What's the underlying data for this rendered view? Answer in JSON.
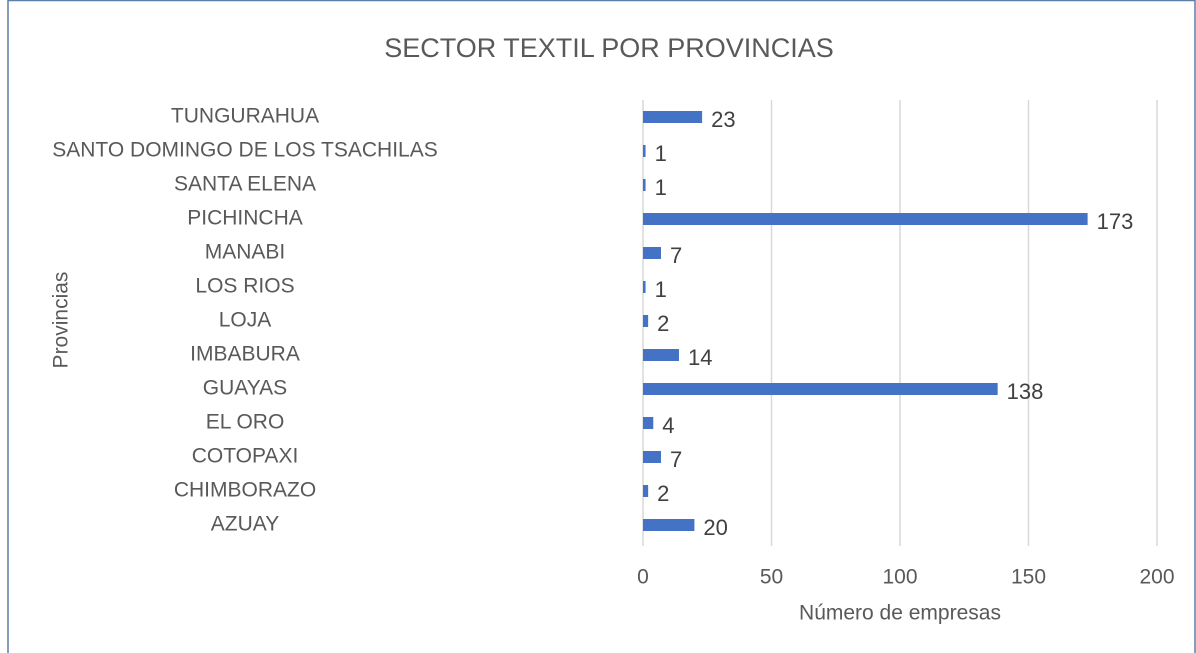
{
  "chart_data": {
    "type": "bar",
    "orientation": "horizontal",
    "title": "SECTOR TEXTIL POR PROVINCIAS",
    "xlabel": "Número de empresas",
    "ylabel": "Provincias",
    "categories": [
      "AZUAY",
      "CHIMBORAZO",
      "COTOPAXI",
      "EL ORO",
      "GUAYAS",
      "IMBABURA",
      "LOJA",
      "LOS RIOS",
      "MANABI",
      "PICHINCHA",
      "SANTA ELENA",
      "SANTO DOMINGO DE LOS TSACHILAS",
      "TUNGURAHUA"
    ],
    "values": [
      20,
      2,
      7,
      4,
      138,
      14,
      2,
      1,
      7,
      173,
      1,
      1,
      23
    ],
    "color": "#4472c4",
    "xlim": [
      0,
      200
    ],
    "xticks": [
      0,
      50,
      100,
      150,
      200
    ],
    "grid": true
  }
}
